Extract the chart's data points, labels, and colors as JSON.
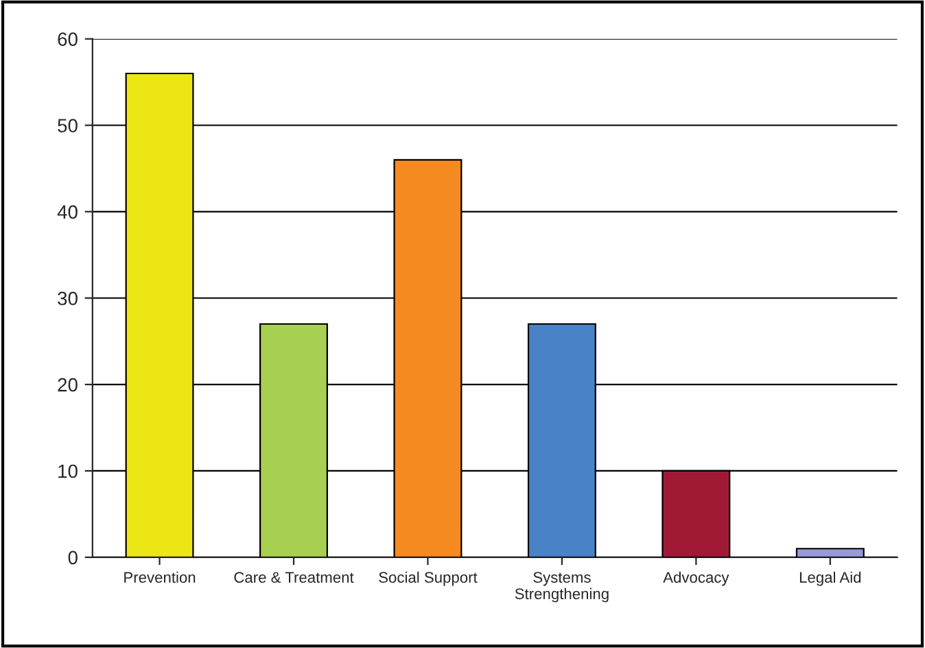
{
  "chart_data": {
    "type": "bar",
    "categories": [
      "Prevention",
      "Care & Treatment",
      "Social Support",
      "Systems\nStrengthening",
      "Advocacy",
      "Legal Aid"
    ],
    "values": [
      56,
      27,
      46,
      27,
      10,
      1
    ],
    "colors": [
      "#ece614",
      "#a8d050",
      "#f58a20",
      "#4a82c8",
      "#a01a36",
      "#9a98d8"
    ],
    "ylim": [
      0,
      60
    ],
    "yticks": [
      0,
      10,
      20,
      30,
      40,
      50,
      60
    ],
    "grid": "y"
  }
}
